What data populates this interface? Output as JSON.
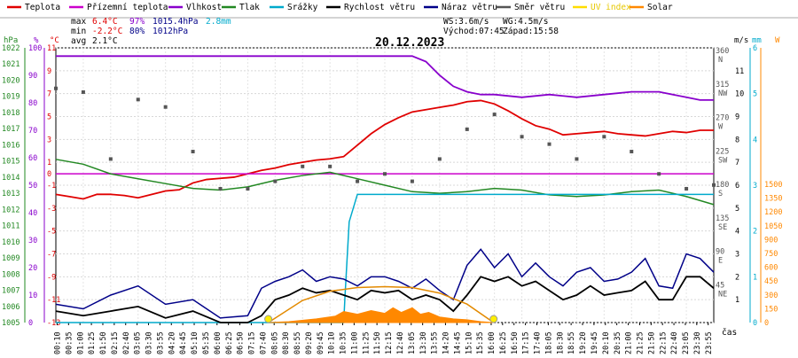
{
  "legend": [
    {
      "key": "teplota",
      "label": "Teplota",
      "color": "#e00000"
    },
    {
      "key": "prizemni",
      "label": "Přízemní teplota",
      "color": "#cc00cc"
    },
    {
      "key": "vlhkost",
      "label": "Vlhkost",
      "color": "#8800cc"
    },
    {
      "key": "tlak",
      "label": "Tlak",
      "color": "#228822"
    },
    {
      "key": "srazky",
      "label": "Srážky",
      "color": "#00aacc"
    },
    {
      "key": "rychlost",
      "label": "Rychlost větru",
      "color": "#000000"
    },
    {
      "key": "naraz",
      "label": "Náraz větru",
      "color": "#000088"
    },
    {
      "key": "smer",
      "label": "Směr větru",
      "color": "#555555"
    },
    {
      "key": "uv",
      "label": "UV index",
      "color": "#ffdd00"
    },
    {
      "key": "solar",
      "label": "Solar",
      "color": "#ff8800"
    }
  ],
  "stats": {
    "max_label": "max",
    "min_label": "min",
    "avg_label": "avg",
    "max_temp": "6.4°C",
    "max_hum": "97%",
    "max_press": "1015.4hPa",
    "max_rain": "2.8mm",
    "min_temp": "-2.2°C",
    "min_hum": "80%",
    "min_press": "1012hPa",
    "avg_temp": "2.1°C"
  },
  "wind_info": {
    "ws": "WS:3.6m/s",
    "wg": "WG:4.5m/s",
    "sunrise": "Východ:07:45",
    "sunset": "Západ:15:58"
  },
  "chart_data": {
    "type": "line",
    "title": "20.12.2023",
    "xlabel": "čas",
    "x_ticks": [
      "00:10",
      "00:35",
      "01:00",
      "01:25",
      "01:50",
      "02:15",
      "02:40",
      "03:05",
      "03:30",
      "03:55",
      "04:20",
      "04:45",
      "05:10",
      "05:35",
      "06:00",
      "06:25",
      "06:50",
      "07:15",
      "07:40",
      "08:05",
      "08:30",
      "08:55",
      "09:20",
      "09:45",
      "10:10",
      "10:35",
      "11:00",
      "11:25",
      "11:50",
      "12:15",
      "12:40",
      "13:05",
      "13:30",
      "13:55",
      "14:20",
      "14:45",
      "15:10",
      "15:35",
      "16:00",
      "16:25",
      "16:50",
      "17:15",
      "17:40",
      "18:05",
      "18:30",
      "18:55",
      "19:20",
      "19:45",
      "20:10",
      "20:35",
      "21:00",
      "21:25",
      "21:50",
      "22:15",
      "22:40",
      "23:05",
      "23:30",
      "23:55"
    ],
    "axes": {
      "pressure": {
        "unit": "hPa",
        "min": 1005,
        "max": 1022,
        "ticks": [
          1005,
          1006,
          1007,
          1008,
          1009,
          1010,
          1011,
          1012,
          1013,
          1014,
          1015,
          1016,
          1017,
          1018,
          1019,
          1020,
          1021,
          1022
        ]
      },
      "humidity": {
        "unit": "%",
        "min": 0,
        "max": 100,
        "ticks": [
          0,
          10,
          20,
          30,
          40,
          50,
          60,
          70,
          80,
          90,
          100
        ]
      },
      "temperature": {
        "unit": "°C",
        "min": -13,
        "max": 11,
        "ticks": [
          -13,
          -11,
          -9,
          -7,
          -5,
          -3,
          -1,
          0,
          1,
          3,
          5,
          7,
          9,
          11
        ]
      },
      "wind_dir": {
        "unit": "°",
        "ticks": [
          {
            "v": 360,
            "n": "N"
          },
          {
            "v": 315,
            "n": "NW"
          },
          {
            "v": 270,
            "n": "W"
          },
          {
            "v": 225,
            "n": "SW"
          },
          {
            "v": 180,
            "n": "S"
          },
          {
            "v": 135,
            "n": "SE"
          },
          {
            "v": 90,
            "n": "E"
          },
          {
            "v": 45,
            "n": "NE"
          }
        ]
      },
      "wind_speed": {
        "unit": "m/s",
        "min": 0,
        "max": 12,
        "ticks": [
          1,
          2,
          3,
          4,
          5,
          6,
          7,
          8,
          9,
          10,
          11
        ]
      },
      "rain": {
        "unit": "mm",
        "min": 0,
        "max": 6,
        "ticks": [
          0,
          1,
          2,
          3,
          4,
          5,
          6
        ]
      },
      "solar": {
        "unit": "W",
        "min": 0,
        "max": 1500,
        "ticks": [
          0,
          150,
          300,
          450,
          600,
          750,
          900,
          1050,
          1200,
          1350,
          1500
        ]
      }
    },
    "series": [
      {
        "name": "Teplota",
        "axis": "temperature",
        "x_h": [
          0,
          0.5,
          1,
          1.5,
          2,
          2.5,
          3,
          3.5,
          4,
          4.5,
          5,
          5.5,
          6,
          6.5,
          7,
          7.5,
          8,
          8.5,
          9,
          9.5,
          10,
          10.5,
          11,
          11.5,
          12,
          12.5,
          13,
          13.5,
          14,
          14.5,
          15,
          15.5,
          16,
          16.5,
          17,
          17.5,
          18,
          18.5,
          19,
          19.5,
          20,
          20.5,
          21,
          21.5,
          22,
          22.5,
          23,
          23.5,
          24
        ],
        "values": [
          -1.8,
          -2.0,
          -2.2,
          -1.8,
          -1.8,
          -1.9,
          -2.1,
          -1.8,
          -1.5,
          -1.4,
          -0.8,
          -0.5,
          -0.4,
          -0.3,
          0.0,
          0.3,
          0.5,
          0.8,
          1.0,
          1.2,
          1.3,
          1.5,
          2.5,
          3.5,
          4.3,
          4.9,
          5.4,
          5.6,
          5.8,
          6.0,
          6.3,
          6.4,
          6.1,
          5.5,
          4.8,
          4.2,
          3.9,
          3.4,
          3.5,
          3.6,
          3.7,
          3.5,
          3.4,
          3.3,
          3.5,
          3.7,
          3.6,
          3.8,
          3.8
        ]
      },
      {
        "name": "Přízemní teplota",
        "axis": "temperature",
        "x_h": [
          0,
          24
        ],
        "values": [
          0,
          0
        ]
      },
      {
        "name": "Vlhkost",
        "axis": "humidity",
        "x_h": [
          0,
          2,
          4,
          6,
          8,
          10,
          12,
          13,
          13.5,
          14,
          14.5,
          15,
          15.5,
          16,
          17,
          18,
          19,
          20,
          21,
          22,
          23,
          23.5,
          24
        ],
        "values": [
          97,
          97,
          97,
          97,
          97,
          97,
          97,
          97,
          95,
          90,
          86,
          84,
          83,
          83,
          82,
          83,
          82,
          83,
          84,
          84,
          82,
          81,
          81
        ]
      },
      {
        "name": "Tlak",
        "axis": "pressure",
        "x_h": [
          0,
          1,
          2,
          3,
          4,
          5,
          6,
          7,
          8,
          9,
          10,
          11,
          12,
          13,
          14,
          15,
          16,
          17,
          18,
          19,
          20,
          21,
          22,
          23,
          24
        ],
        "values": [
          1015.1,
          1014.8,
          1014.2,
          1013.9,
          1013.6,
          1013.3,
          1013.2,
          1013.4,
          1013.8,
          1014.1,
          1014.3,
          1013.9,
          1013.5,
          1013.1,
          1013.0,
          1013.1,
          1013.3,
          1013.2,
          1012.9,
          1012.8,
          1012.9,
          1013.1,
          1013.2,
          1012.8,
          1012.3
        ]
      },
      {
        "name": "Srážky",
        "axis": "rain",
        "x_h": [
          0,
          9.5,
          10.5,
          10.55,
          10.7,
          11.0,
          24
        ],
        "values": [
          0,
          0,
          0,
          0.6,
          2.2,
          2.8,
          2.8
        ]
      },
      {
        "name": "Rychlost větru",
        "axis": "wind_speed",
        "x_h": [
          0,
          1,
          2,
          3,
          4,
          5,
          6,
          7,
          7.5,
          8,
          8.5,
          9,
          9.5,
          10,
          10.5,
          11,
          11.5,
          12,
          12.5,
          13,
          13.5,
          14,
          14.5,
          15,
          15.5,
          16,
          16.5,
          17,
          17.5,
          18,
          18.5,
          19,
          19.5,
          20,
          20.5,
          21,
          21.5,
          22,
          22.5,
          23,
          23.5,
          24
        ],
        "values": [
          0.5,
          0.3,
          0.5,
          0.7,
          0.2,
          0.5,
          0.0,
          0.0,
          0.3,
          1.0,
          1.2,
          1.5,
          1.3,
          1.4,
          1.2,
          1.0,
          1.4,
          1.3,
          1.4,
          1.0,
          1.2,
          1.0,
          0.5,
          1.2,
          2.0,
          1.8,
          2.0,
          1.6,
          1.8,
          1.4,
          1.0,
          1.2,
          1.6,
          1.2,
          1.3,
          1.4,
          1.8,
          1.0,
          1.0,
          2.0,
          2.0,
          1.5
        ]
      },
      {
        "name": "Náraz větru",
        "axis": "wind_speed",
        "x_h": [
          0,
          1,
          2,
          3,
          4,
          5,
          6,
          7,
          7.5,
          8,
          8.5,
          9,
          9.5,
          10,
          10.5,
          11,
          11.5,
          12,
          12.5,
          13,
          13.5,
          14,
          14.5,
          15,
          15.5,
          16,
          16.5,
          17,
          17.5,
          18,
          18.5,
          19,
          19.5,
          20,
          20.5,
          21,
          21.5,
          22,
          22.5,
          23,
          23.5,
          24
        ],
        "values": [
          0.8,
          0.6,
          1.2,
          1.6,
          0.8,
          1.0,
          0.2,
          0.3,
          1.5,
          1.8,
          2.0,
          2.3,
          1.8,
          2.0,
          1.9,
          1.6,
          2.0,
          2.0,
          1.8,
          1.5,
          1.9,
          1.4,
          1.0,
          2.5,
          3.2,
          2.4,
          3.0,
          2.0,
          2.6,
          2.0,
          1.6,
          2.2,
          2.4,
          1.8,
          1.9,
          2.2,
          2.8,
          1.6,
          1.5,
          3.0,
          2.8,
          2.2
        ]
      },
      {
        "name": "Směr větru",
        "axis": "wind_dir",
        "x_h": [
          0,
          1,
          2,
          3,
          4,
          5,
          6,
          7,
          8,
          9,
          10,
          11,
          12,
          13,
          14,
          15,
          16,
          17,
          18,
          19,
          20,
          21,
          22,
          23,
          24
        ],
        "values": [
          315,
          310,
          220,
          300,
          290,
          230,
          180,
          180,
          190,
          210,
          210,
          190,
          200,
          190,
          220,
          260,
          280,
          250,
          240,
          220,
          250,
          230,
          200,
          180,
          185
        ]
      },
      {
        "name": "Solar",
        "axis": "solar",
        "x_h": [
          7.75,
          8.5,
          9.5,
          10.2,
          10.5,
          11,
          11.5,
          12,
          12.3,
          12.6,
          13,
          13.3,
          13.6,
          14,
          14.5,
          15,
          15.5,
          15.97
        ],
        "values": [
          0,
          10,
          40,
          70,
          120,
          90,
          130,
          100,
          160,
          110,
          160,
          90,
          110,
          60,
          40,
          30,
          10,
          0
        ]
      },
      {
        "name": "Solar",
        "axis": "solar",
        "x_h": [
          7.75,
          9,
          10,
          11,
          12,
          13,
          14,
          15,
          15.97
        ],
        "values": [
          0,
          240,
          340,
          380,
          390,
          380,
          320,
          200,
          0
        ]
      }
    ]
  }
}
